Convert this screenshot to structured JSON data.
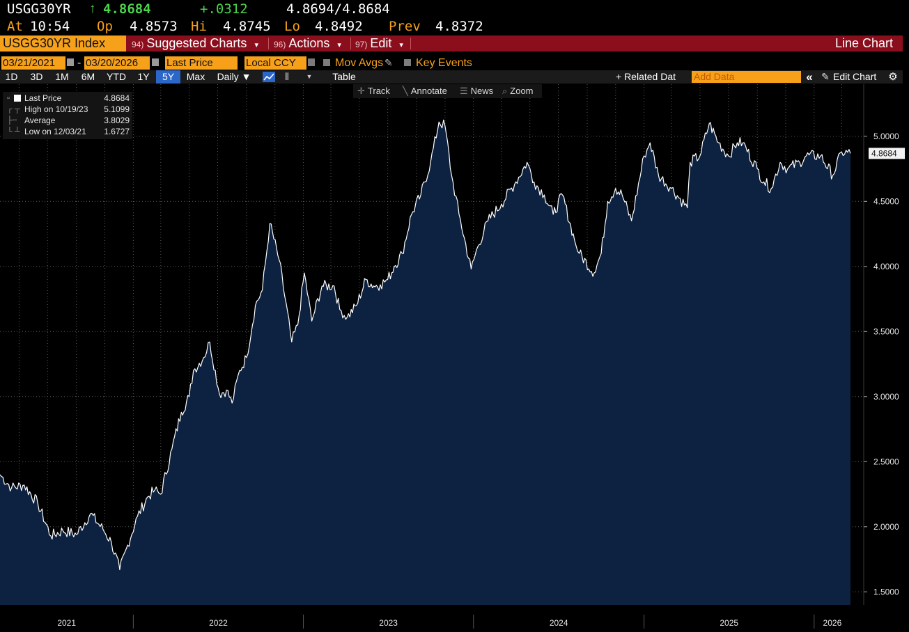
{
  "ticker": {
    "symbol": "USGG30YR",
    "arrow": "↑",
    "last": "4.8684",
    "change": "+.0312",
    "bid_ask": "4.8694/4.8684",
    "at_label": "At",
    "time": "10:54",
    "open_label": "Op",
    "open": "4.8573",
    "high_label": "Hi",
    "high": "4.8745",
    "low_label": "Lo",
    "low": "4.8492",
    "prev_label": "Prev",
    "prev": "4.8372"
  },
  "menu": {
    "security": "USGG30YR Index",
    "items": [
      {
        "num": "94)",
        "label": "Suggested Charts",
        "caret": "▾"
      },
      {
        "num": "96)",
        "label": "Actions",
        "caret": "▾"
      },
      {
        "num": "97)",
        "label": "Edit",
        "caret": "▾"
      }
    ],
    "chart_type": "Line Chart"
  },
  "controls": {
    "start_date": "03/21/2021",
    "dash": "-",
    "end_date": "03/20/2026",
    "field": "Last Price",
    "currency": "Local CCY",
    "mov_avgs": "Mov Avgs",
    "key_events": "Key Events"
  },
  "range": {
    "buttons": [
      "1D",
      "3D",
      "1M",
      "6M",
      "YTD",
      "1Y",
      "5Y",
      "Max"
    ],
    "active": "5Y",
    "frequency": "Daily ▼",
    "table": "Table",
    "related": "+ Related Dat",
    "add_data_placeholder": "Add Data",
    "collapse": "«",
    "edit_chart": "Edit Chart"
  },
  "tools": {
    "track": "Track",
    "annotate": "Annotate",
    "news": "News",
    "zoom": "Zoom"
  },
  "legend": {
    "last_label": "Last Price",
    "last_value": "4.8684",
    "high_label": "High on 10/19/23",
    "high_value": "5.1099",
    "avg_label": "Average",
    "avg_value": "3.8029",
    "low_label": "Low on 12/03/21",
    "low_value": "1.6727"
  },
  "colors": {
    "accent_orange": "#f7a11b",
    "menu_red": "#8b0e1d",
    "area_fill": "#0d2240",
    "line": "#ffffff",
    "up_green": "#4bd34b"
  },
  "chart_data": {
    "type": "area",
    "title": "",
    "xlabel": "",
    "ylabel": "",
    "ylim": [
      1.4,
      5.4
    ],
    "yticks": [
      "1.5000",
      "2.0000",
      "2.5000",
      "3.0000",
      "3.5000",
      "4.0000",
      "4.5000",
      "5.0000"
    ],
    "xticks": [
      "2021",
      "2022",
      "2023",
      "2024",
      "2025",
      "2026"
    ],
    "xrange": [
      "2021-03-21",
      "2026-03-20"
    ],
    "last_value_tag": "4.8684",
    "grid": true,
    "series": [
      {
        "x": [
          "2021-03-21",
          "2021-04-15",
          "2021-05-12",
          "2021-06-10",
          "2021-07-08",
          "2021-08-03",
          "2021-09-01",
          "2021-10-01",
          "2021-10-28",
          "2021-11-15",
          "2021-12-03",
          "2021-12-20",
          "2022-01-10",
          "2022-02-01",
          "2022-02-16",
          "2022-03-01",
          "2022-03-25",
          "2022-04-14",
          "2022-05-01",
          "2022-05-10",
          "2022-06-01",
          "2022-06-14",
          "2022-07-05",
          "2022-07-20",
          "2022-08-01",
          "2022-08-17",
          "2022-09-01",
          "2022-09-20",
          "2022-10-05",
          "2022-10-21",
          "2022-11-10",
          "2022-12-07",
          "2022-12-20",
          "2023-01-03",
          "2023-01-19",
          "2023-02-10",
          "2023-03-08",
          "2023-03-20",
          "2023-04-05",
          "2023-04-25",
          "2023-05-15",
          "2023-06-01",
          "2023-06-15",
          "2023-07-01",
          "2023-07-15",
          "2023-08-01",
          "2023-08-21",
          "2023-09-10",
          "2023-10-01",
          "2023-10-19",
          "2023-11-01",
          "2023-11-15",
          "2023-12-01",
          "2023-12-27",
          "2024-01-10",
          "2024-02-01",
          "2024-03-01",
          "2024-04-01",
          "2024-04-25",
          "2024-05-10",
          "2024-06-01",
          "2024-06-20",
          "2024-07-10",
          "2024-08-05",
          "2024-08-15",
          "2024-09-16",
          "2024-10-01",
          "2024-10-15",
          "2024-11-01",
          "2024-11-15",
          "2024-12-05",
          "2025-01-01",
          "2025-01-14",
          "2025-02-01",
          "2025-03-01",
          "2025-04-04",
          "2025-04-10",
          "2025-05-01",
          "2025-05-21",
          "2025-06-10",
          "2025-07-01",
          "2025-07-20",
          "2025-08-01",
          "2025-09-01",
          "2025-09-15",
          "2025-10-01",
          "2025-10-20",
          "2025-11-05",
          "2025-12-01",
          "2025-12-15",
          "2026-01-15",
          "2026-02-10",
          "2026-03-01",
          "2026-03-20"
        ],
        "y": [
          2.4,
          2.3,
          2.32,
          2.18,
          1.93,
          1.97,
          1.94,
          2.1,
          1.98,
          1.88,
          1.67,
          1.86,
          2.08,
          2.23,
          2.28,
          2.25,
          2.6,
          2.88,
          3.0,
          3.2,
          3.3,
          3.42,
          3.02,
          3.05,
          2.95,
          3.2,
          3.3,
          3.7,
          3.82,
          4.33,
          4.05,
          3.42,
          3.55,
          3.95,
          3.58,
          3.85,
          3.85,
          3.67,
          3.61,
          3.7,
          3.9,
          3.85,
          3.86,
          3.9,
          4.0,
          4.1,
          4.4,
          4.55,
          4.8,
          5.11,
          5.08,
          4.7,
          4.4,
          3.98,
          4.15,
          4.35,
          4.48,
          4.65,
          4.8,
          4.65,
          4.55,
          4.4,
          4.55,
          4.2,
          4.1,
          3.95,
          4.1,
          4.5,
          4.6,
          4.55,
          4.35,
          4.85,
          4.95,
          4.7,
          4.6,
          4.45,
          4.8,
          4.85,
          5.1,
          4.95,
          4.85,
          4.95,
          4.95,
          4.75,
          4.65,
          4.6,
          4.8,
          4.75,
          4.8,
          4.85,
          4.85,
          4.7,
          4.88,
          4.8684
        ]
      }
    ]
  }
}
